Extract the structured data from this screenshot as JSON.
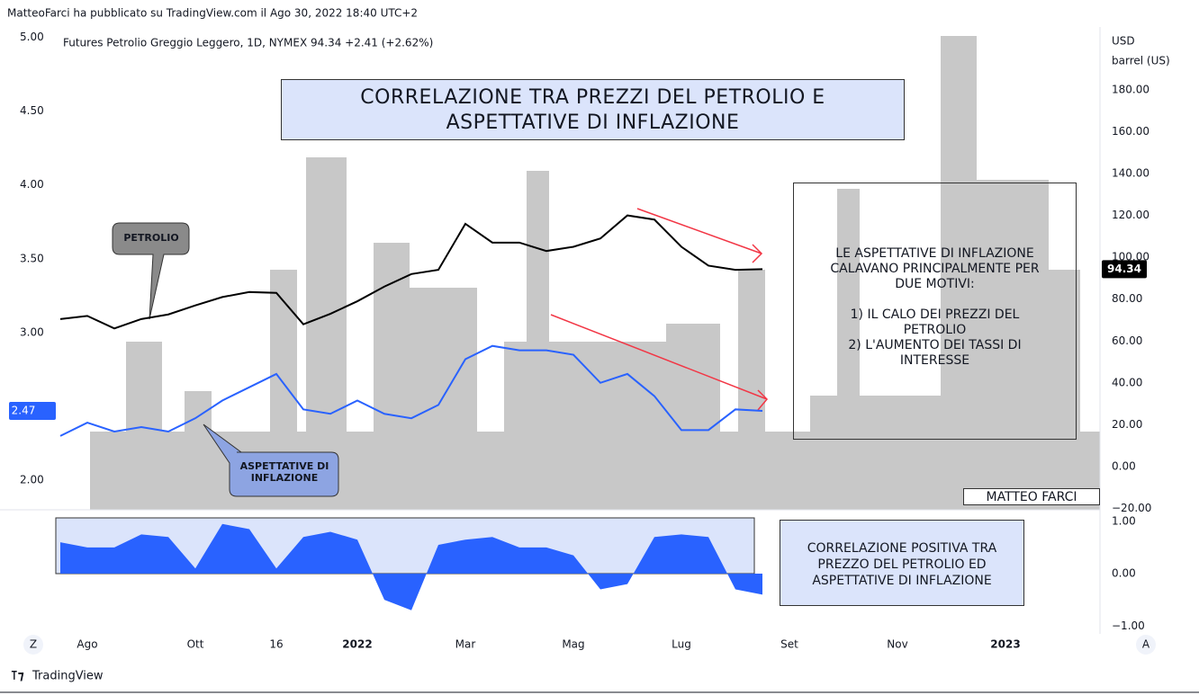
{
  "header": "MatteoFarci ha pubblicato su TradingView.com il Ago 30, 2022 18:40 UTC+2",
  "symbol_info": "Futures Petrolio Greggio Leggero, 1D, NYMEX  94.34  +2.41 (+2.62%)",
  "chart_data": {
    "type": "line",
    "title_lines": [
      "CORRELAZIONE TRA PREZZI DEL PETROLIO E",
      "ASPETTATIVE DI INFLAZIONE"
    ],
    "categories": [
      null,
      "Ago",
      null,
      null,
      null,
      "Ott",
      null,
      null,
      "16",
      null,
      null,
      "2022",
      null,
      null,
      null,
      "Mar",
      null,
      null,
      null,
      "Mag",
      null,
      null,
      null,
      "Lug",
      null,
      null,
      null,
      "Set",
      null,
      null,
      null,
      "Nov",
      null,
      null,
      null,
      "2023",
      null,
      null,
      null
    ],
    "series": [
      {
        "name": "PETROLIO",
        "color": "#000000",
        "axis": "y2",
        "values": [
          70.5,
          72,
          66,
          70.5,
          72.7,
          77,
          81,
          83.4,
          83,
          68,
          73,
          79,
          86,
          92,
          94,
          116,
          107,
          107,
          103,
          105,
          109,
          120,
          118,
          105,
          96,
          94,
          94.34,
          null,
          null,
          null,
          null,
          null,
          null,
          null,
          null,
          null,
          null,
          null,
          null
        ]
      },
      {
        "name": "ASPETTATIVE DI INFLAZIONE",
        "color": "#2962ff",
        "values": [
          2.3,
          2.39,
          2.33,
          2.36,
          2.33,
          2.42,
          2.54,
          2.63,
          2.72,
          2.48,
          2.45,
          2.54,
          2.45,
          2.42,
          2.51,
          2.82,
          2.91,
          2.88,
          2.88,
          2.85,
          2.66,
          2.72,
          2.57,
          2.34,
          2.34,
          2.48,
          2.47,
          null,
          null,
          null,
          null,
          null,
          null,
          null,
          null,
          null,
          null,
          null,
          null
        ]
      }
    ],
    "ylim": [
      1.8,
      5.07
    ],
    "yticks": [
      {
        "value": 2,
        "label": "2.00"
      },
      {
        "value": 3,
        "label": "3.00"
      },
      {
        "value": 3.5,
        "label": "3.50"
      },
      {
        "value": 4,
        "label": "4.00"
      },
      {
        "value": 4.5,
        "label": "4.50"
      },
      {
        "value": 5,
        "label": "5.00"
      }
    ],
    "y2lim": [
      -20.6,
      210
    ],
    "y2ticks": [
      {
        "value": -20,
        "label": "−20.00"
      },
      {
        "value": 0,
        "label": "0.00"
      },
      {
        "value": 20,
        "label": "20.00"
      },
      {
        "value": 40,
        "label": "40.00"
      },
      {
        "value": 60,
        "label": "60.00"
      },
      {
        "value": 80,
        "label": "80.00"
      },
      {
        "value": 100,
        "label": "100.00"
      },
      {
        "value": 120,
        "label": "120.00"
      },
      {
        "value": 140,
        "label": "140.00"
      },
      {
        "value": 160,
        "label": "160.00"
      },
      {
        "value": 180,
        "label": "180.00"
      }
    ],
    "y2_unit": [
      "USD",
      "barrel (US)"
    ],
    "note_lines": [
      "LE ASPETTATIVE DI INFLAZIONE",
      "CALAVANO PRINCIPALMENTE PER",
      "DUE MOTIVI:",
      "1) IL CALO DEI PREZZI DEL",
      "PETROLIO",
      "2) L'AUMENTO DEI TASSI DI",
      "INTERESSE"
    ],
    "signature": "MATTEO FARCI",
    "grid": false,
    "lower_pane": {
      "type": "area",
      "color": "#2962ff",
      "values": [
        0.6,
        0.5,
        0.5,
        0.75,
        0.7,
        0.1,
        0.95,
        0.85,
        0.1,
        0.7,
        0.8,
        0.65,
        -0.5,
        -0.7,
        0.55,
        0.65,
        0.7,
        0.5,
        0.5,
        0.35,
        -0.3,
        -0.2,
        0.7,
        0.75,
        0.7,
        -0.3,
        -0.4,
        null,
        null,
        null,
        null,
        null,
        null,
        null,
        null,
        null,
        null,
        null,
        null
      ],
      "ylim": [
        -1.15,
        1.22
      ],
      "yticks": [
        {
          "value": -1,
          "label": "−1.00"
        },
        {
          "value": 0,
          "label": "0.00"
        },
        {
          "value": 1,
          "label": "1.00"
        }
      ],
      "note_lines": [
        "CORRELAZIONE POSITIVA TRA",
        "PREZZO DEL PETROLIO ED",
        "ASPETTATIVE DI INFLAZIONE"
      ]
    }
  },
  "ui": {
    "left_button": "Z",
    "right_button": "A",
    "brand": "TradingView"
  }
}
